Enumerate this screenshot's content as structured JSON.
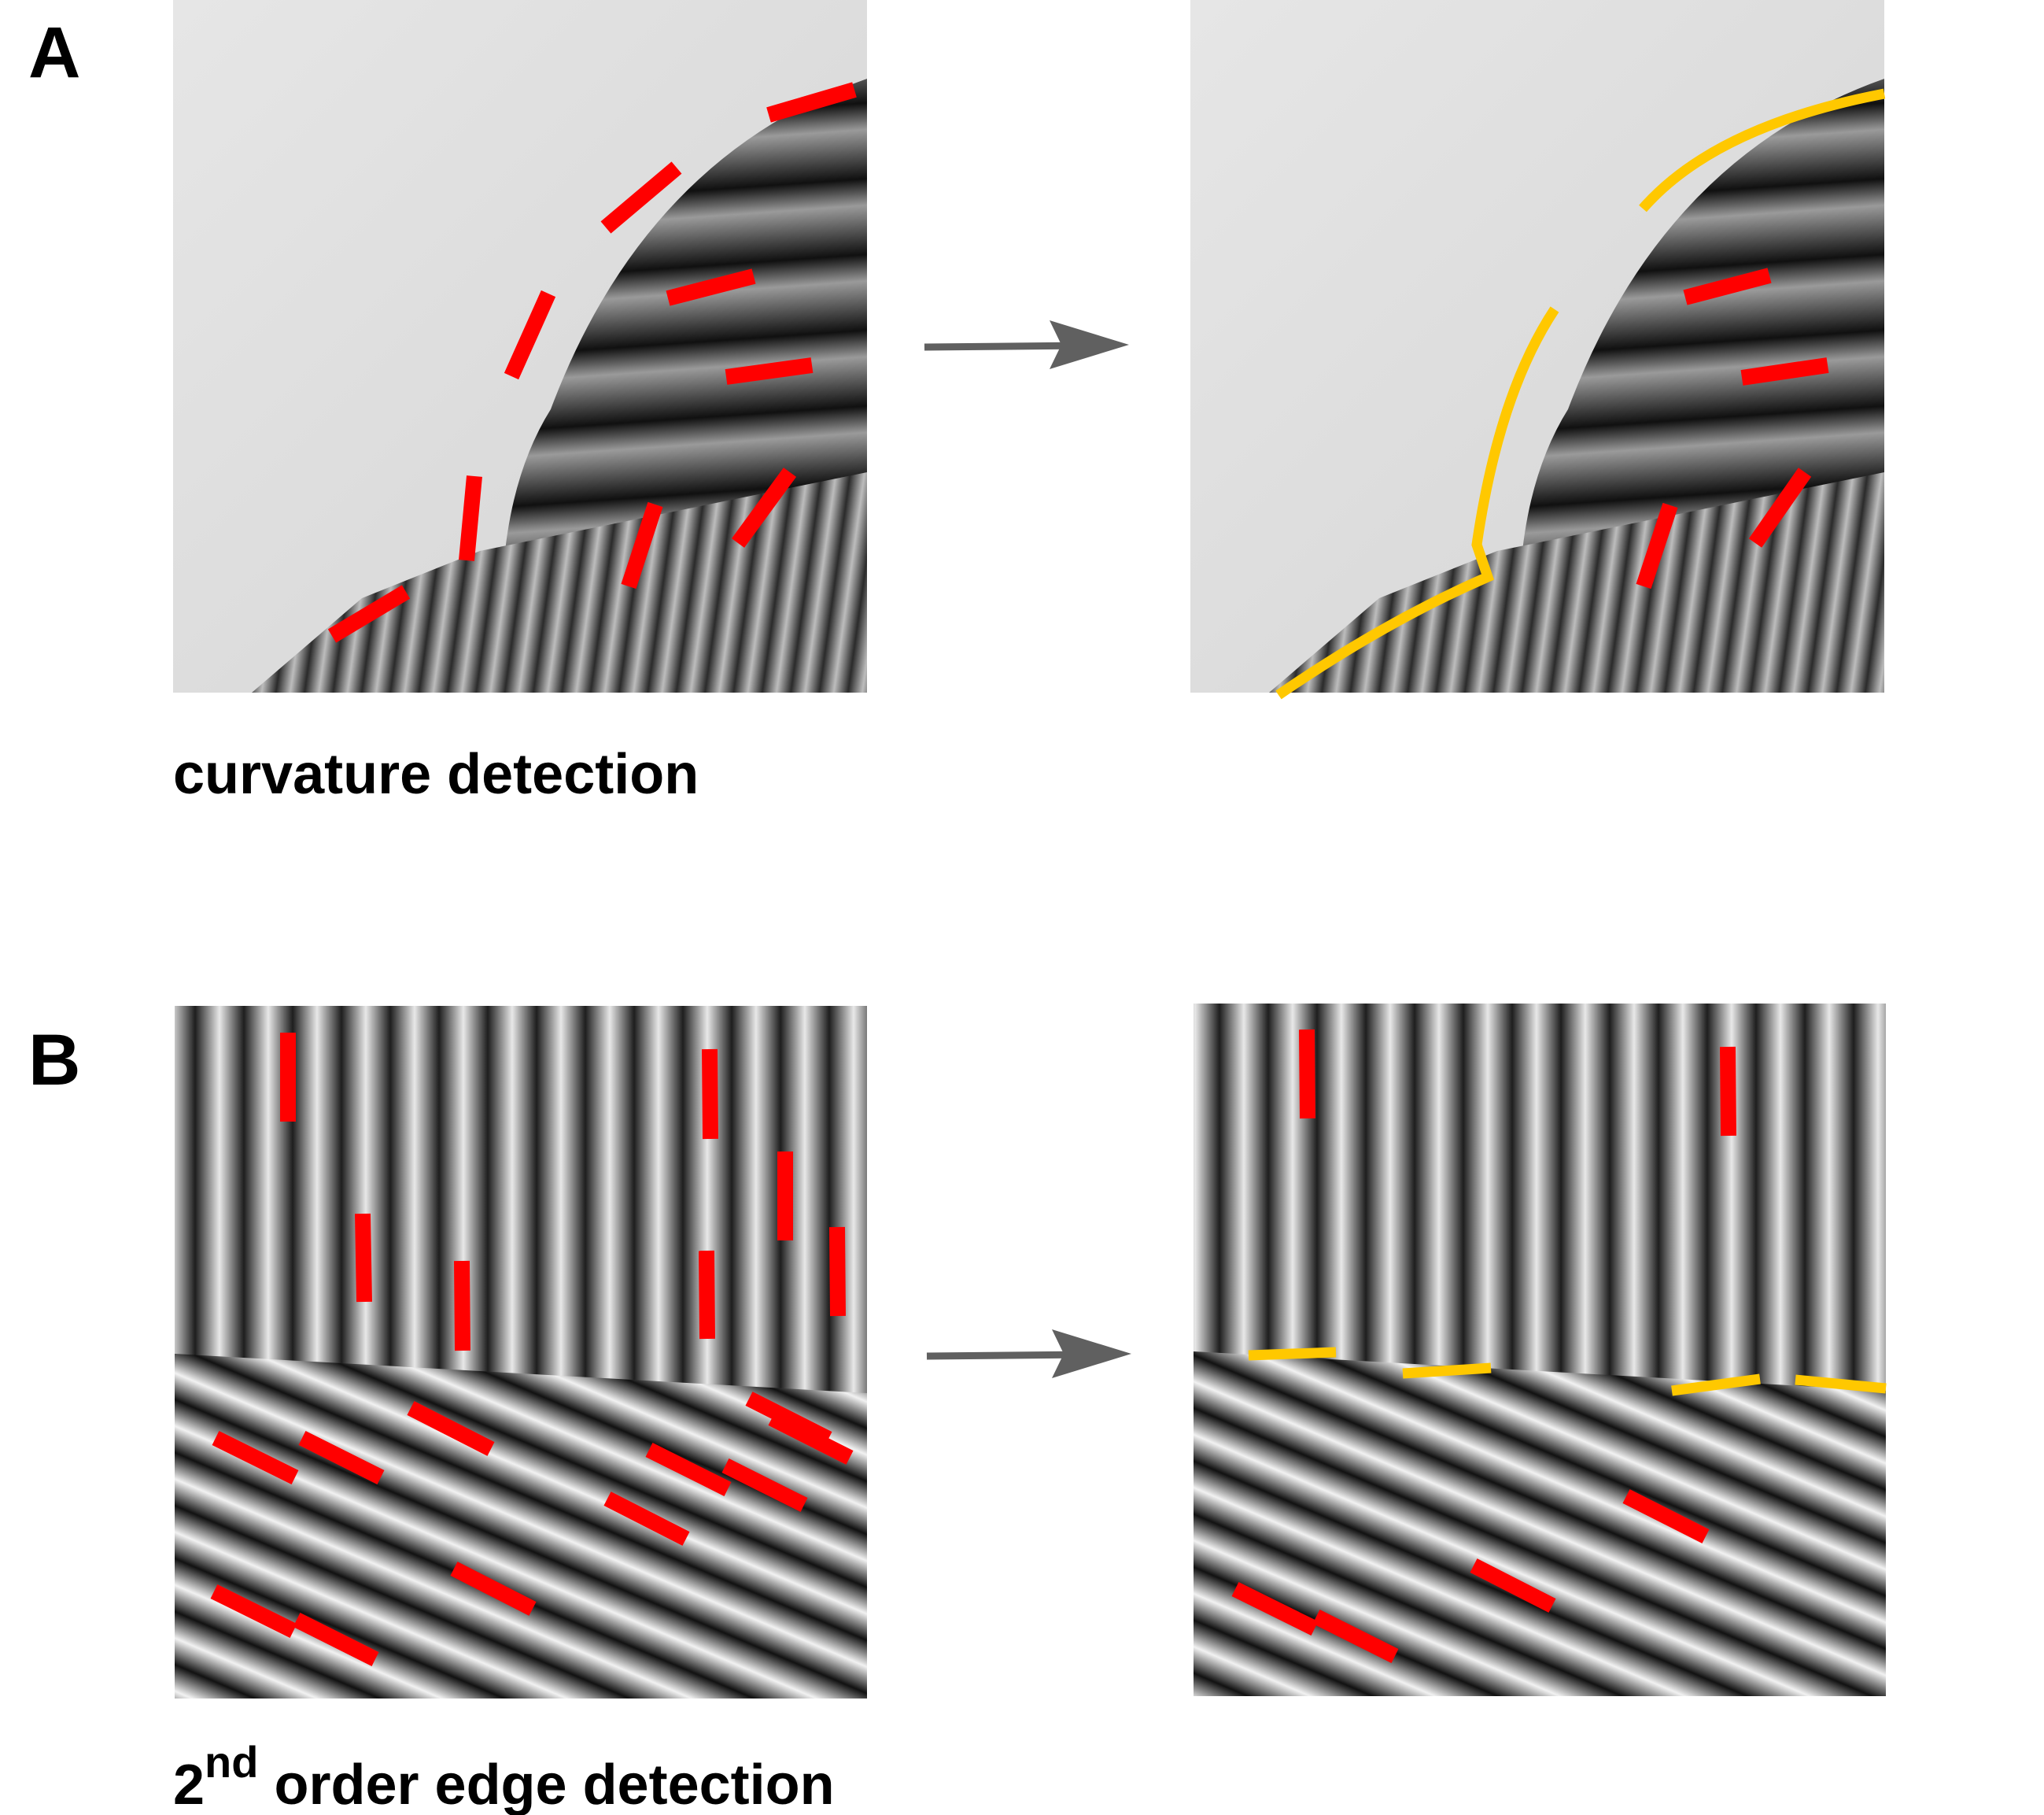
{
  "panels": [
    {
      "id": "A",
      "letter": "A",
      "caption": "curvature detection",
      "stimulus": "curved boundary between a smooth gray background and oriented gratings",
      "step": "local edge detectors grouped into continuous contours",
      "colors": {
        "local_detector": "#ff0000",
        "grouped_contour": "#ffc800",
        "arrow": "#606060"
      }
    },
    {
      "id": "B",
      "letter": "B",
      "caption_base": "2",
      "caption_sup": "nd",
      "caption_rest": " order edge detection",
      "stimulus": "texture boundary between vertical and oblique gratings",
      "step": "second-order boundary detected along the texture border",
      "colors": {
        "local_detector": "#ff0000",
        "grouped_contour": "#ffc800",
        "arrow": "#606060"
      }
    }
  ],
  "icons": {
    "transition": "right-arrow-icon"
  }
}
